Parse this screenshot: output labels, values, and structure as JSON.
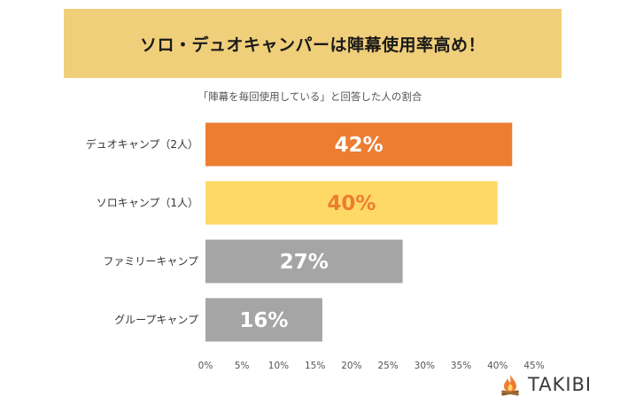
{
  "header": {
    "title": "ソロ・デュオキャンパーは陣幕使用率高め！"
  },
  "chart_data": {
    "type": "bar",
    "orientation": "horizontal",
    "title": "ソロ・デュオキャンパーは陣幕使用率高め！",
    "subtitle": "「陣幕を毎回使用している」と回答した人の割合",
    "categories": [
      "デュオキャンプ（2人）",
      "ソロキャンプ（1人）",
      "ファミリーキャンプ",
      "グループキャンプ"
    ],
    "values": [
      42,
      40,
      27,
      16
    ],
    "data_labels": [
      "42%",
      "40%",
      "27%",
      "16%"
    ],
    "bar_colors": [
      "#ed7d31",
      "#ffd966",
      "#a5a5a5",
      "#a5a5a5"
    ],
    "label_colors": [
      "#ffffff",
      "#ed7d31",
      "#ffffff",
      "#ffffff"
    ],
    "xlim": [
      0,
      45
    ],
    "xticks": [
      "0%",
      "5%",
      "10%",
      "15%",
      "20%",
      "25%",
      "30%",
      "35%",
      "40%",
      "45%"
    ],
    "grid": false,
    "legend": "none"
  },
  "logo": {
    "text": "TAKIBI",
    "icon": "campfire-icon",
    "color": "#ed7d31"
  }
}
